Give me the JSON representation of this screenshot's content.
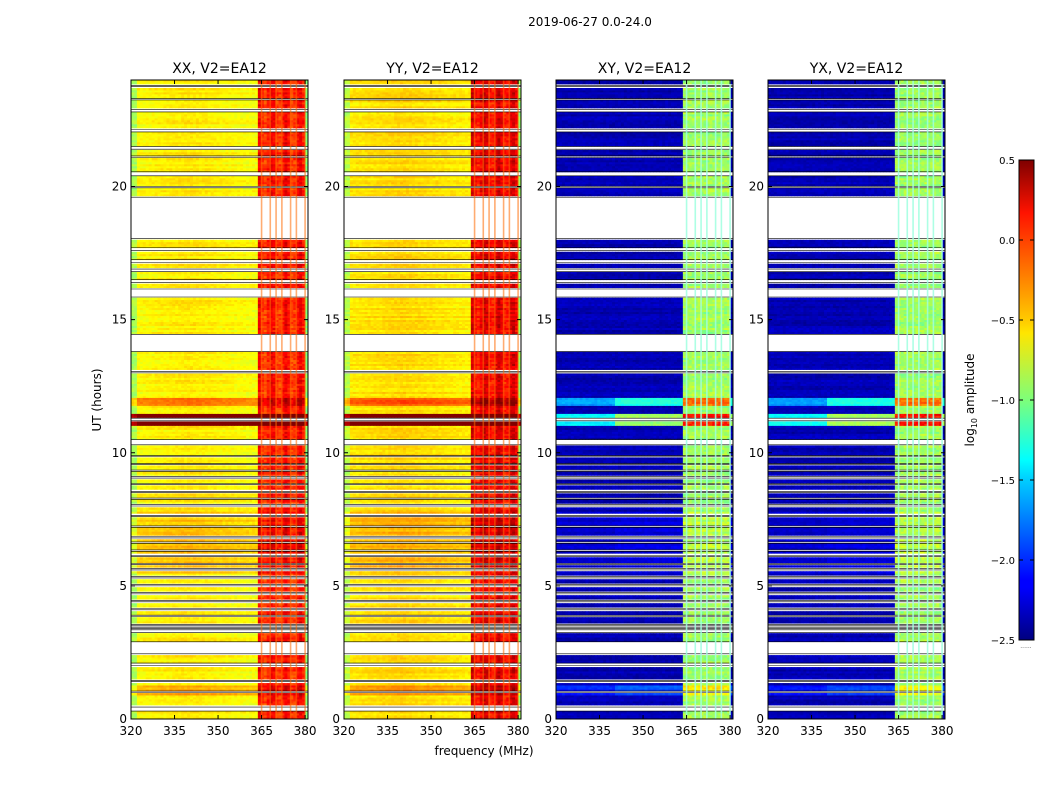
{
  "figure": {
    "suptitle": "2019-06-27 0.0-24.0",
    "xlabel": "frequency (MHz)",
    "ylabel": "UT (hours)"
  },
  "colorbar": {
    "label_prefix": "log",
    "label_subscript": "10",
    "label_suffix": " amplitude",
    "vmin": -2.5,
    "vmax": 0.5,
    "ticks": [
      0.5,
      0.0,
      -0.5,
      -1.0,
      -1.5,
      -2.0,
      -2.5
    ],
    "tick_labels": [
      "0.5",
      "0.0",
      "−0.5",
      "−1.0",
      "−1.5",
      "−2.0",
      "−2.5"
    ],
    "colormap": "jet",
    "below_text": "......"
  },
  "chart_data": {
    "type": "heatmap",
    "x": {
      "label": "frequency (MHz)",
      "lim": [
        320,
        381
      ],
      "ticks": [
        320,
        335,
        350,
        365,
        380
      ],
      "tick_labels": [
        "320",
        "335",
        "350",
        "365",
        "380"
      ]
    },
    "y": {
      "label": "UT (hours)",
      "lim": [
        0,
        24
      ],
      "ticks": [
        0,
        5,
        10,
        15,
        20
      ],
      "tick_labels": [
        "0",
        "5",
        "10",
        "15",
        "20"
      ]
    },
    "flagged_time_ranges_hours": [
      [
        0.3,
        0.45
      ],
      [
        1.0,
        1.05
      ],
      [
        1.4,
        1.45
      ],
      [
        2.0,
        2.1
      ],
      [
        2.45,
        2.9
      ],
      [
        3.25,
        3.35
      ],
      [
        3.4,
        3.45
      ],
      [
        3.5,
        3.55
      ],
      [
        3.85,
        3.9
      ],
      [
        4.1,
        4.15
      ],
      [
        4.4,
        4.45
      ],
      [
        4.7,
        4.75
      ],
      [
        5.0,
        5.05
      ],
      [
        5.3,
        5.35
      ],
      [
        5.6,
        5.65
      ],
      [
        5.8,
        5.85
      ],
      [
        6.1,
        6.15
      ],
      [
        6.3,
        6.35
      ],
      [
        6.6,
        6.65
      ],
      [
        6.8,
        6.85
      ],
      [
        7.2,
        7.25
      ],
      [
        7.6,
        7.65
      ],
      [
        8.0,
        8.05
      ],
      [
        8.25,
        8.3
      ],
      [
        8.5,
        8.55
      ],
      [
        8.8,
        8.85
      ],
      [
        9.05,
        9.1
      ],
      [
        9.3,
        9.35
      ],
      [
        9.55,
        9.6
      ],
      [
        9.85,
        9.9
      ],
      [
        10.3,
        10.5
      ],
      [
        11.2,
        11.3
      ],
      [
        13.0,
        13.05
      ],
      [
        13.8,
        14.45
      ],
      [
        15.85,
        16.15
      ],
      [
        16.4,
        16.5
      ],
      [
        16.8,
        16.9
      ],
      [
        17.15,
        17.25
      ],
      [
        17.6,
        17.7
      ],
      [
        18.05,
        19.6
      ],
      [
        19.95,
        20.0
      ],
      [
        20.4,
        20.55
      ],
      [
        21.1,
        21.15
      ],
      [
        21.4,
        21.5
      ],
      [
        22.05,
        22.15
      ],
      [
        22.8,
        22.9
      ],
      [
        23.25,
        23.3
      ],
      [
        23.75,
        23.8
      ]
    ],
    "rfi_channels_MHz": [
      365,
      368,
      370,
      372,
      375,
      377,
      380
    ],
    "bright_band_MHz": [
      363.5,
      379.5
    ],
    "series": [
      {
        "name": "XX, V2=EA12",
        "title": "XX, V2=EA12",
        "kind": "parallel",
        "base_log10_amp": -0.55,
        "band_log10_amp": 0.05
      },
      {
        "name": "YY, V2=EA12",
        "title": "YY, V2=EA12",
        "kind": "parallel",
        "base_log10_amp": -0.5,
        "band_log10_amp": 0.15
      },
      {
        "name": "XY, V2=EA12",
        "title": "XY, V2=EA12",
        "kind": "cross",
        "base_log10_amp": -2.35,
        "band_log10_amp": -0.9
      },
      {
        "name": "YX, V2=EA12",
        "title": "YX, V2=EA12",
        "kind": "cross",
        "base_log10_amp": -2.35,
        "band_log10_amp": -0.9
      }
    ]
  }
}
